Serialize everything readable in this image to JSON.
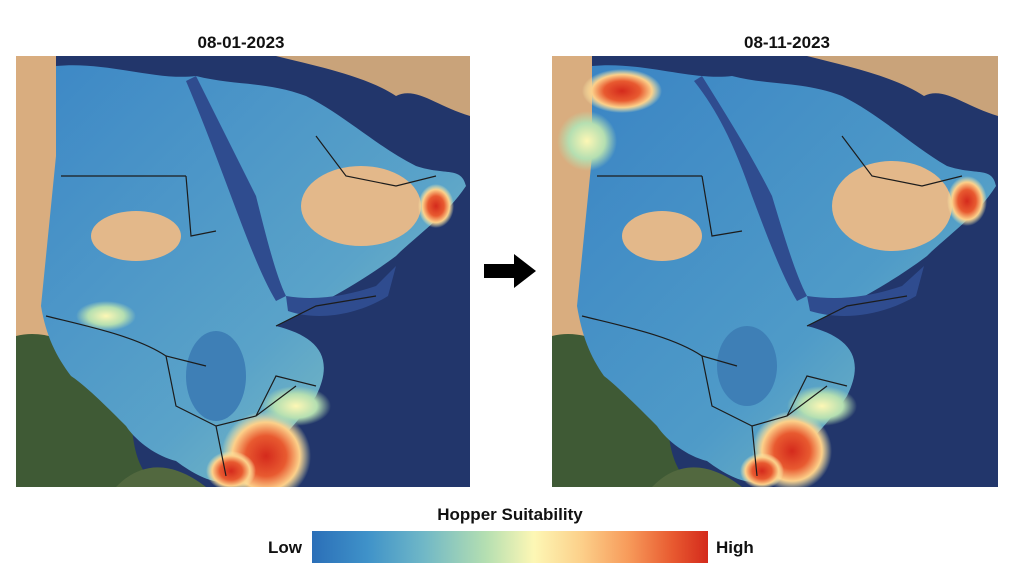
{
  "maps": [
    {
      "date": "08-01-2023"
    },
    {
      "date": "08-11-2023"
    }
  ],
  "legend": {
    "title": "Hopper Suitability",
    "low_label": "Low",
    "high_label": "High",
    "colors": [
      "#2b6fb8",
      "#3f92c9",
      "#6fb7c7",
      "#b5dfb1",
      "#fdf7b5",
      "#fcd08a",
      "#f79a5a",
      "#e85a30",
      "#d42a1c"
    ]
  },
  "colors": {
    "ocean": "#22366b",
    "desert": "#e3b88a",
    "vegetation": "#3f5a35",
    "border": "#1c1c1c",
    "arrow": "#000000"
  },
  "icons": [
    "right-arrow-icon"
  ]
}
